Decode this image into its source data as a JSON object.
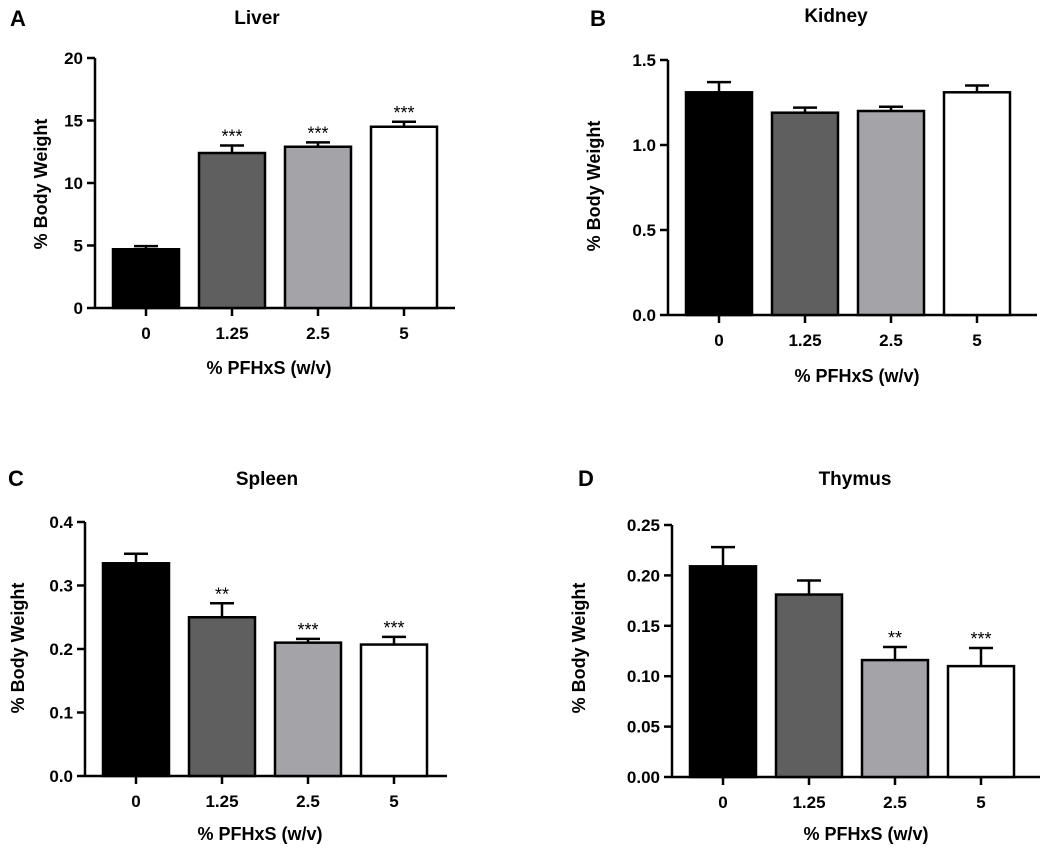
{
  "chart_data": [
    {
      "panel": "A",
      "type": "bar",
      "title": "Liver",
      "xlabel": "%  PFHxS (w/v)",
      "ylabel": "% Body Weight",
      "categories": [
        "0",
        "1.25",
        "2.5",
        "5"
      ],
      "values": [
        4.7,
        12.4,
        12.9,
        14.5
      ],
      "errors": [
        0.25,
        0.6,
        0.35,
        0.4
      ],
      "significance": [
        "",
        "***",
        "***",
        "***"
      ],
      "ylim": [
        0,
        20
      ],
      "yticks": [
        "0",
        "5",
        "10",
        "15",
        "20"
      ],
      "bar_colors": [
        "#000000",
        "#5f5f5f",
        "#a3a3a8",
        "#ffffff"
      ]
    },
    {
      "panel": "B",
      "type": "bar",
      "title": "Kidney",
      "xlabel": "%  PFHxS (w/v)",
      "ylabel": "% Body Weight",
      "categories": [
        "0",
        "1.25",
        "2.5",
        "5"
      ],
      "values": [
        1.31,
        1.19,
        1.2,
        1.31
      ],
      "errors": [
        0.06,
        0.03,
        0.025,
        0.04
      ],
      "significance": [
        "",
        "",
        "",
        ""
      ],
      "ylim": [
        0,
        1.5
      ],
      "yticks": [
        "0.0",
        "0.5",
        "1.0",
        "1.5"
      ],
      "bar_colors": [
        "#000000",
        "#5f5f5f",
        "#a3a3a8",
        "#ffffff"
      ]
    },
    {
      "panel": "C",
      "type": "bar",
      "title": "Spleen",
      "xlabel": "%  PFHxS (w/v)",
      "ylabel": "% Body Weight",
      "categories": [
        "0",
        "1.25",
        "2.5",
        "5"
      ],
      "values": [
        0.335,
        0.25,
        0.21,
        0.207
      ],
      "errors": [
        0.015,
        0.022,
        0.006,
        0.012
      ],
      "significance": [
        "",
        "**",
        "***",
        "***"
      ],
      "ylim": [
        0,
        0.4
      ],
      "yticks": [
        "0.0",
        "0.1",
        "0.2",
        "0.3",
        "0.4"
      ],
      "bar_colors": [
        "#000000",
        "#5f5f5f",
        "#a3a3a8",
        "#ffffff"
      ]
    },
    {
      "panel": "D",
      "type": "bar",
      "title": "Thymus",
      "xlabel": "%  PFHxS (w/v)",
      "ylabel": "% Body Weight",
      "categories": [
        "0",
        "1.25",
        "2.5",
        "5"
      ],
      "values": [
        0.209,
        0.181,
        0.116,
        0.11
      ],
      "errors": [
        0.019,
        0.014,
        0.013,
        0.018
      ],
      "significance": [
        "",
        "",
        "**",
        "***"
      ],
      "ylim": [
        0,
        0.25
      ],
      "yticks": [
        "0.00",
        "0.05",
        "0.10",
        "0.15",
        "0.20",
        "0.25"
      ],
      "bar_colors": [
        "#000000",
        "#5f5f5f",
        "#a3a3a8",
        "#ffffff"
      ]
    }
  ]
}
